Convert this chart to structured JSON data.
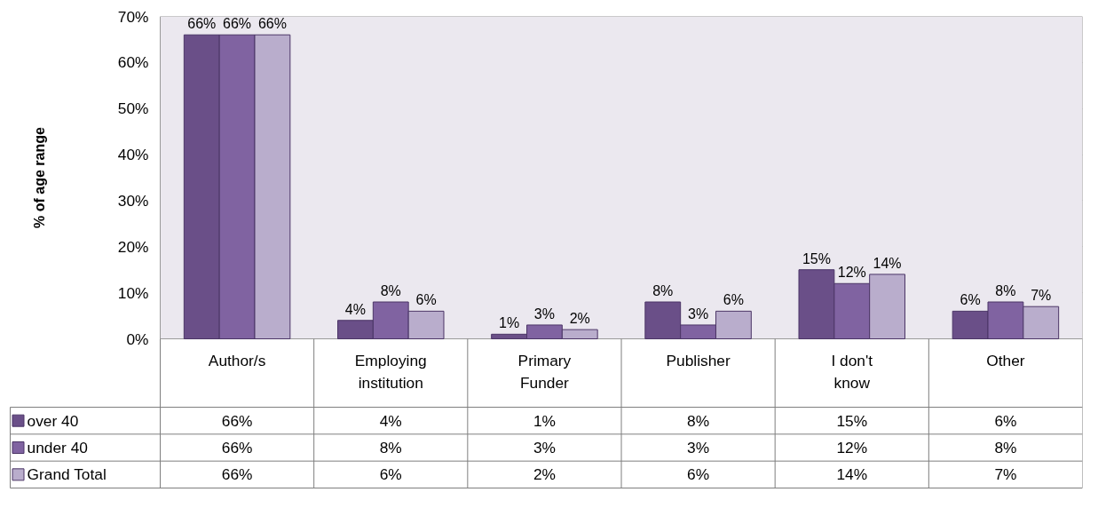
{
  "chart_data": {
    "type": "bar",
    "ylabel": "% of age range",
    "categories": [
      "Author/s",
      "Employing institution",
      "Primary Funder",
      "Publisher",
      "I don't know",
      "Other"
    ],
    "series": [
      {
        "name": "over 40",
        "color": "#6a4f88",
        "values": [
          66,
          4,
          1,
          8,
          15,
          6
        ],
        "value_labels": [
          "66%",
          "4%",
          "1%",
          "8%",
          "15%",
          "6%"
        ]
      },
      {
        "name": "under 40",
        "color": "#8063a1",
        "values": [
          66,
          8,
          3,
          3,
          12,
          8
        ],
        "value_labels": [
          "66%",
          "8%",
          "3%",
          "3%",
          "12%",
          "8%"
        ]
      },
      {
        "name": "Grand Total",
        "color": "#b9adcc",
        "values": [
          66,
          6,
          2,
          6,
          14,
          7
        ],
        "value_labels": [
          "66%",
          "6%",
          "2%",
          "6%",
          "14%",
          "7%"
        ]
      }
    ],
    "ylim": [
      0,
      70
    ],
    "yticks": [
      {
        "value": 0,
        "label": "0%"
      },
      {
        "value": 10,
        "label": "10%"
      },
      {
        "value": 20,
        "label": "20%"
      },
      {
        "value": 30,
        "label": "30%"
      },
      {
        "value": 40,
        "label": "40%"
      },
      {
        "value": 50,
        "label": "50%"
      },
      {
        "value": 60,
        "label": "60%"
      },
      {
        "value": 70,
        "label": "70%"
      }
    ],
    "grid": "y",
    "legend": "bottom left"
  }
}
